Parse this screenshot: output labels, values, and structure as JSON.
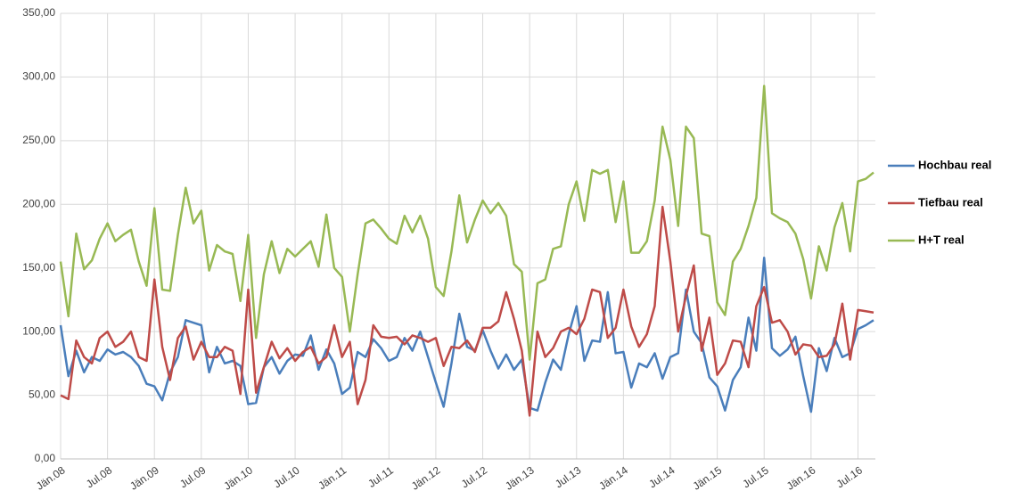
{
  "chart_data": {
    "type": "line",
    "categories": [
      "Jän.08",
      null,
      null,
      null,
      null,
      null,
      "Jul.08",
      null,
      null,
      null,
      null,
      null,
      "Jän.09",
      null,
      null,
      null,
      null,
      null,
      "Jul.09",
      null,
      null,
      null,
      null,
      null,
      "Jän.10",
      null,
      null,
      null,
      null,
      null,
      "Jul.10",
      null,
      null,
      null,
      null,
      null,
      "Jän.11",
      null,
      null,
      null,
      null,
      null,
      "Jul.11",
      null,
      null,
      null,
      null,
      null,
      "Jän.12",
      null,
      null,
      null,
      null,
      null,
      "Jul.12",
      null,
      null,
      null,
      null,
      null,
      "Jän.13",
      null,
      null,
      null,
      null,
      null,
      "Jul.13",
      null,
      null,
      null,
      null,
      null,
      "Jän.14",
      null,
      null,
      null,
      null,
      null,
      "Jul.14",
      null,
      null,
      null,
      null,
      null,
      "Jän.15",
      null,
      null,
      null,
      null,
      null,
      "Jul.15",
      null,
      null,
      null,
      null,
      null,
      "Jän.16",
      null,
      null,
      null,
      null,
      null,
      "Jul.16",
      null,
      null
    ],
    "series": [
      {
        "name": "Hochbau real",
        "color": "#4a7ebb",
        "values": [
          105,
          65,
          85,
          68,
          80,
          77,
          86,
          82,
          84,
          80,
          73,
          59,
          57,
          46,
          68,
          80,
          109,
          107,
          105,
          68,
          88,
          75,
          77,
          73,
          43,
          44,
          72,
          80,
          67,
          77,
          82,
          81,
          97,
          70,
          86,
          75,
          51,
          56,
          84,
          80,
          94,
          87,
          77,
          80,
          95,
          85,
          100,
          80,
          60,
          41,
          75,
          114,
          88,
          85,
          101,
          85,
          71,
          82,
          70,
          78,
          40,
          38,
          60,
          78,
          70,
          98,
          120,
          77,
          93,
          92,
          131,
          83,
          84,
          56,
          75,
          72,
          83,
          63,
          80,
          83,
          133,
          100,
          91,
          64,
          57,
          38,
          62,
          72,
          111,
          85,
          158,
          87,
          81,
          86,
          96,
          65,
          37,
          87,
          69,
          95,
          80,
          83,
          102,
          105,
          109
        ]
      },
      {
        "name": "Tiefbau real",
        "color": "#be4b48",
        "values": [
          50,
          47,
          93,
          80,
          75,
          95,
          100,
          88,
          92,
          100,
          80,
          77,
          141,
          88,
          62,
          95,
          104,
          78,
          92,
          80,
          80,
          88,
          85,
          51,
          133,
          52,
          72,
          92,
          79,
          87,
          77,
          84,
          88,
          75,
          80,
          105,
          80,
          92,
          43,
          62,
          105,
          96,
          95,
          96,
          90,
          97,
          95,
          92,
          95,
          73,
          88,
          87,
          93,
          84,
          103,
          103,
          108,
          131,
          110,
          85,
          34,
          100,
          80,
          87,
          100,
          103,
          98,
          110,
          133,
          131,
          95,
          103,
          133,
          104,
          88,
          98,
          120,
          198,
          155,
          100,
          128,
          152,
          85,
          111,
          66,
          75,
          93,
          92,
          72,
          120,
          135,
          107,
          109,
          100,
          82,
          90,
          89,
          80,
          81,
          90,
          122,
          78,
          117,
          116,
          115
        ]
      },
      {
        "name": "H+T real",
        "color": "#98b954",
        "values": [
          155,
          112,
          177,
          149,
          156,
          173,
          185,
          171,
          176,
          180,
          155,
          136,
          197,
          133,
          132,
          176,
          213,
          185,
          195,
          148,
          168,
          163,
          161,
          124,
          176,
          95,
          145,
          171,
          146,
          165,
          159,
          165,
          171,
          151,
          192,
          150,
          143,
          100,
          145,
          185,
          188,
          181,
          173,
          169,
          191,
          178,
          191,
          173,
          135,
          128,
          163,
          207,
          170,
          188,
          203,
          193,
          201,
          191,
          153,
          147,
          78,
          138,
          141,
          165,
          167,
          200,
          218,
          187,
          227,
          224,
          227,
          186,
          218,
          162,
          162,
          171,
          203,
          261,
          235,
          183,
          261,
          252,
          177,
          175,
          123,
          113,
          155,
          165,
          183,
          205,
          293,
          193,
          189,
          186,
          177,
          157,
          126,
          167,
          148,
          182,
          201,
          163,
          218,
          220,
          225
        ]
      }
    ],
    "ylim": [
      0,
      350
    ],
    "yticks": [
      {
        "value": 0,
        "label": "0,00"
      },
      {
        "value": 50,
        "label": "50,00"
      },
      {
        "value": 100,
        "label": "100,00"
      },
      {
        "value": 150,
        "label": "150,00"
      },
      {
        "value": 200,
        "label": "200,00"
      },
      {
        "value": 250,
        "label": "250,00"
      },
      {
        "value": 300,
        "label": "300,00"
      },
      {
        "value": 350,
        "label": "350,00"
      }
    ],
    "grid": true,
    "legend": "right"
  }
}
